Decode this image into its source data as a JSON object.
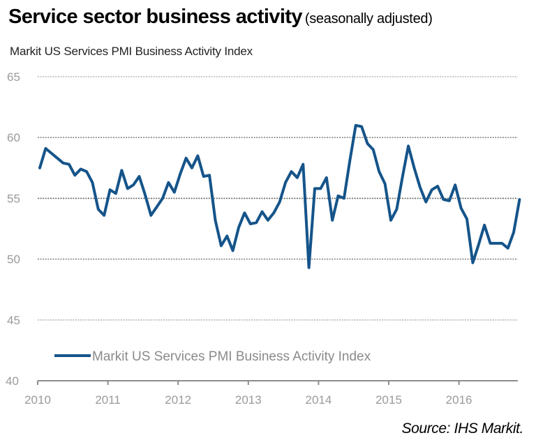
{
  "header": {
    "title": "Service sector business activity",
    "title_suffix": "(seasonally adjusted)",
    "subtitle": "Markit US Services PMI Business Activity Index"
  },
  "footer": {
    "source": "Source: IHS Markit."
  },
  "colors": {
    "series": "#15548a",
    "grid": "#9a9a9a",
    "grid_dark": "#555555",
    "axis": "#8c8c8c",
    "tick_text": "#9a9a9a"
  },
  "chart_data": {
    "type": "line",
    "title": "Service sector business activity (seasonally adjusted)",
    "subtitle": "Markit US Services PMI Business Activity Index",
    "xlabel": "",
    "ylabel": "",
    "ylim": [
      40,
      65
    ],
    "yticks": [
      40,
      45,
      50,
      55,
      60,
      65
    ],
    "xticks": [
      "2010",
      "2011",
      "2012",
      "2013",
      "2014",
      "2015",
      "2016"
    ],
    "x_start": "2010-01",
    "x_frequency": "monthly",
    "grid": true,
    "legend": {
      "position": "bottom-left-inside",
      "entries": [
        "Markit US Services PMI Business Activity Index"
      ]
    },
    "series": [
      {
        "name": "Markit US Services PMI Business Activity Index",
        "values": [
          57.5,
          59.1,
          58.7,
          58.3,
          57.9,
          57.8,
          56.9,
          57.4,
          57.2,
          56.3,
          54.1,
          53.6,
          55.7,
          55.4,
          57.3,
          55.8,
          56.1,
          56.8,
          55.3,
          53.6,
          54.3,
          55.0,
          56.3,
          55.5,
          57.0,
          58.3,
          57.5,
          58.5,
          56.8,
          56.9,
          53.2,
          51.1,
          51.9,
          50.7,
          52.6,
          53.8,
          52.9,
          53.0,
          53.9,
          53.2,
          53.8,
          54.7,
          56.3,
          57.2,
          56.7,
          57.8,
          49.3,
          55.8,
          55.8,
          56.7,
          53.2,
          55.2,
          55.0,
          58.1,
          61.0,
          60.9,
          59.5,
          59.0,
          57.2,
          56.2,
          53.2,
          54.1,
          56.8,
          59.3,
          57.5,
          55.9,
          54.7,
          55.7,
          56.0,
          54.9,
          54.8,
          56.1,
          54.2,
          53.3,
          49.7,
          51.2,
          52.8,
          51.3,
          51.3,
          51.3,
          50.9,
          52.2,
          54.9
        ]
      }
    ]
  }
}
